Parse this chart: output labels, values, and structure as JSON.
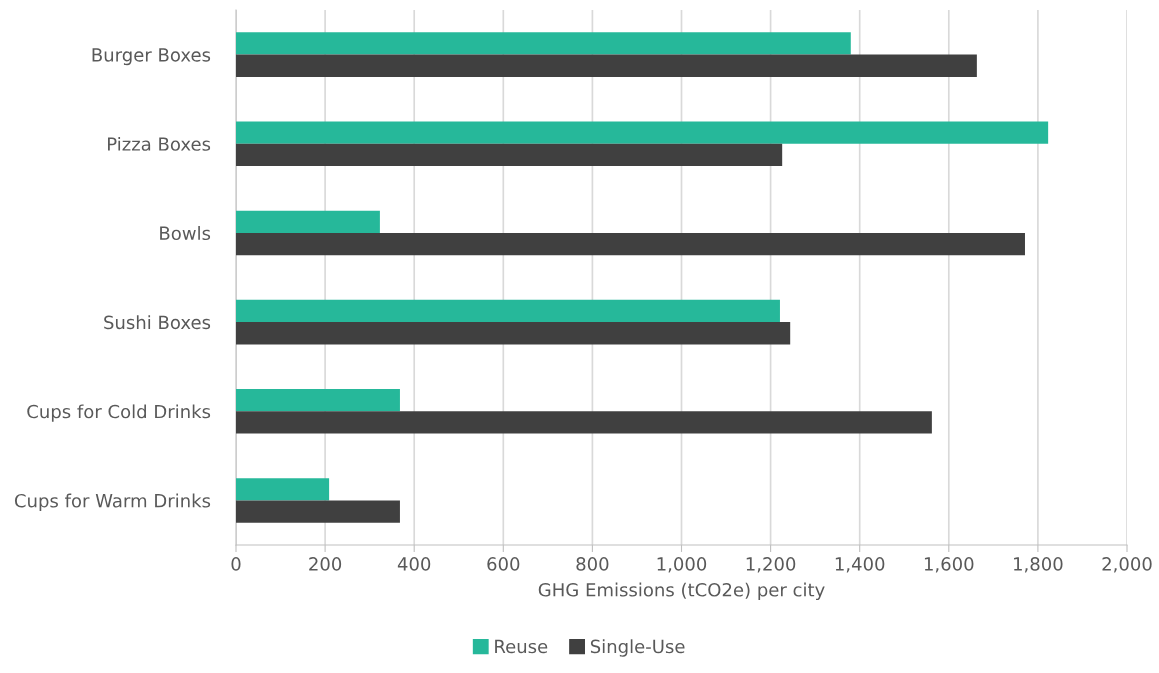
{
  "chart_data": {
    "type": "bar",
    "orientation": "horizontal",
    "categories": [
      "Burger Boxes",
      "Pizza Boxes",
      "Bowls",
      "Sushi Boxes",
      "Cups for Cold Drinks",
      "Cups for Warm Drinks"
    ],
    "series": [
      {
        "name": "Reuse",
        "color": "#26b89a",
        "values": [
          1380,
          1823,
          323,
          1221,
          368,
          209
        ]
      },
      {
        "name": "Single-Use",
        "color": "#404040",
        "values": [
          1663,
          1226,
          1771,
          1244,
          1562,
          368
        ]
      }
    ],
    "xlabel": "GHG Emissions (tCO2e) per city",
    "xlim": [
      0,
      2000
    ],
    "xticks": [
      0,
      200,
      400,
      600,
      800,
      {
        "value": 1000,
        "label": "1,000"
      },
      {
        "value": 1200,
        "label": "1,200"
      },
      {
        "value": 1400,
        "label": "1,400"
      },
      {
        "value": 1600,
        "label": "1,600"
      },
      {
        "value": 1800,
        "label": "1,800"
      },
      {
        "value": 2000,
        "label": "2,000"
      }
    ],
    "grid": "x",
    "legend": "bottom"
  }
}
